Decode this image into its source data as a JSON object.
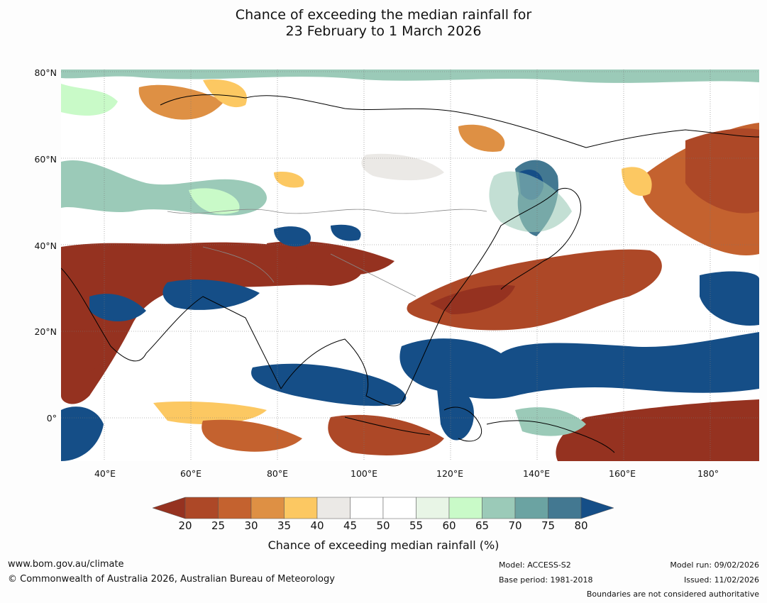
{
  "title": {
    "line1": "Chance of exceeding the median rainfall for",
    "line2": "23 February to 1 March 2026"
  },
  "map": {
    "lat_labels": [
      "80°N",
      "60°N",
      "40°N",
      "20°N",
      "0°"
    ],
    "lon_labels": [
      "40°E",
      "60°E",
      "80°E",
      "100°E",
      "120°E",
      "140°E",
      "160°E",
      "180°"
    ],
    "palette": {
      "p20": "#953220",
      "p25": "#ad4827",
      "p30": "#c4622f",
      "p35": "#de9044",
      "p40": "#fcc862",
      "p45": "#ebe9e6",
      "p50": "#ffffff",
      "p55": "#ffffff",
      "p60": "#e8f5e6",
      "p65": "#c9fac8",
      "p70": "#9bcab8",
      "p75": "#6ba3a2",
      "p80": "#437891",
      "p85": "#154e87"
    }
  },
  "colorbar": {
    "ticks": [
      "20",
      "25",
      "30",
      "35",
      "40",
      "45",
      "50",
      "55",
      "60",
      "65",
      "70",
      "75",
      "80"
    ],
    "label": "Chance of exceeding median rainfall (%)"
  },
  "footer": {
    "url": "www.bom.gov.au/climate",
    "copyright": "© Commonwealth of Australia 2026, Australian Bureau of Meteorology",
    "model": "Model: ACCESS-S2",
    "base_period": "Base period: 1981-2018",
    "model_run": "Model run: 09/02/2026",
    "issued": "Issued: 11/02/2026",
    "disclaimer": "Boundaries are not considered authoritative"
  }
}
